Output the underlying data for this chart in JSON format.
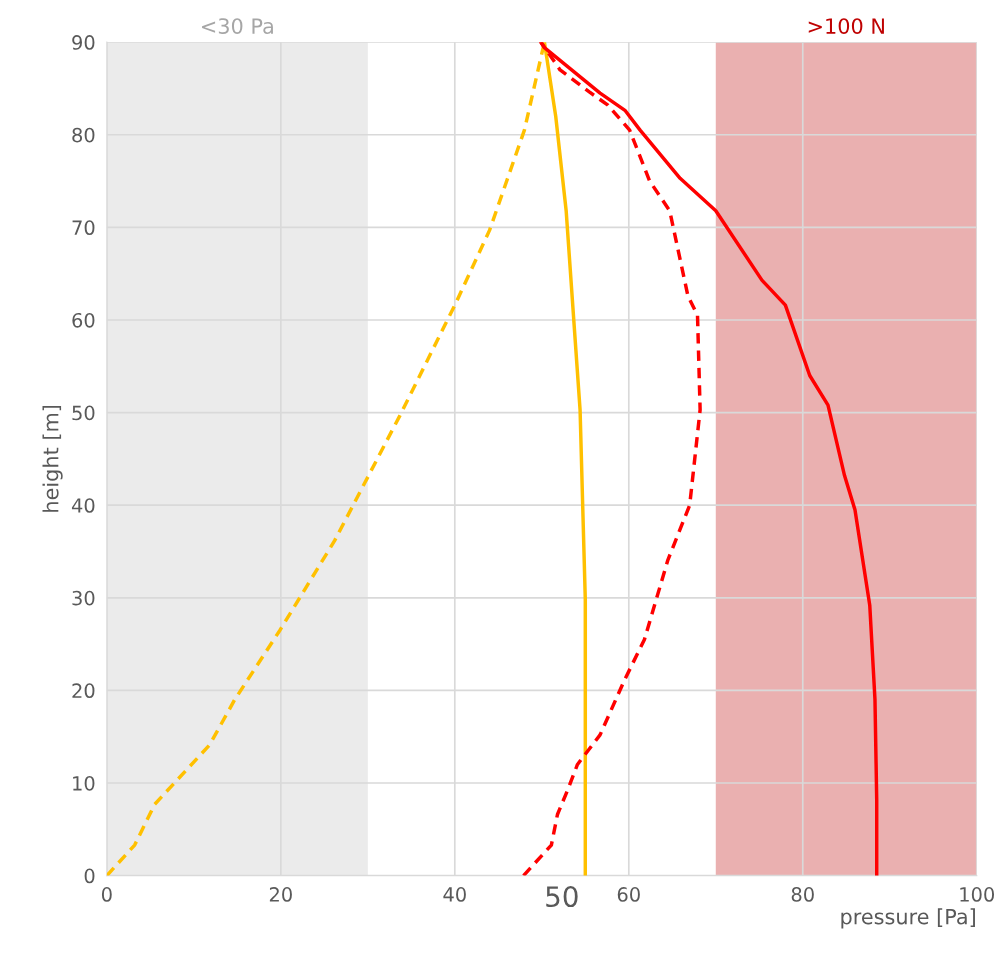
{
  "chart_data": {
    "type": "line",
    "xlabel": "pressure [Pa]",
    "ylabel": "height [m]",
    "xlim": [
      0,
      100
    ],
    "ylim": [
      0,
      90
    ],
    "xticks": [
      0,
      20,
      40,
      60,
      80,
      100
    ],
    "annotations": [
      "50"
    ],
    "yticks": [
      0,
      10,
      20,
      30,
      40,
      50,
      60,
      70,
      80,
      90
    ],
    "grid": true,
    "marker": "none",
    "bands": [
      {
        "axis": "x",
        "from": 0,
        "to": 30,
        "label": "<30 Pa",
        "color": "#ebebeb"
      },
      {
        "axis": "x",
        "from": 70,
        "to": 100,
        "label": ">100 N",
        "color": "#eab0b0"
      }
    ],
    "series": [
      {
        "color": "#ffc000",
        "line_style": "dashed",
        "x": [
          0,
          3.2,
          5.5,
          11.8,
          14.7,
          19.9,
          26.2,
          29.7,
          33.7,
          40,
          44,
          48,
          50.3
        ],
        "values": [
          0,
          3.3,
          7.7,
          14.1,
          19,
          26.5,
          36.2,
          42.5,
          49.7,
          61.6,
          69.7,
          80.5,
          90
        ]
      },
      {
        "color": "#ffc000",
        "line_style": "solid",
        "x": [
          55,
          55,
          54.7,
          54.4,
          53.6,
          52.8,
          51.6,
          50.3
        ],
        "values": [
          0,
          29.8,
          40,
          50.3,
          61,
          71.8,
          82,
          90
        ]
      },
      {
        "color": "#ff0000",
        "line_style": "dashed",
        "x": [
          47.9,
          51.1,
          51.8,
          53,
          54.1,
          56.7,
          59.5,
          61.8,
          64.5,
          67,
          68.2,
          67.9,
          66.8,
          64.7,
          62.4,
          60.1,
          57.6,
          55.5,
          52.1,
          49.9
        ],
        "values": [
          0,
          3.3,
          6.6,
          9.3,
          12,
          15.2,
          21.1,
          25.5,
          34.1,
          40,
          50.3,
          60.5,
          62.6,
          71.8,
          75,
          80.5,
          83.2,
          84.6,
          87,
          90
        ]
      },
      {
        "color": "#ff0000",
        "line_style": "solid",
        "x": [
          88.5,
          88.5,
          88.3,
          87.7,
          86,
          84.8,
          82.9,
          80.8,
          78,
          75.3,
          70,
          65.9,
          61.3,
          59.6,
          56.7,
          50.3,
          49.9
        ],
        "values": [
          0,
          8.2,
          19,
          29.2,
          39.5,
          43.2,
          50.8,
          54,
          61.6,
          64.3,
          71.8,
          75.3,
          80.5,
          82.6,
          84.5,
          89.4,
          90
        ]
      }
    ]
  }
}
